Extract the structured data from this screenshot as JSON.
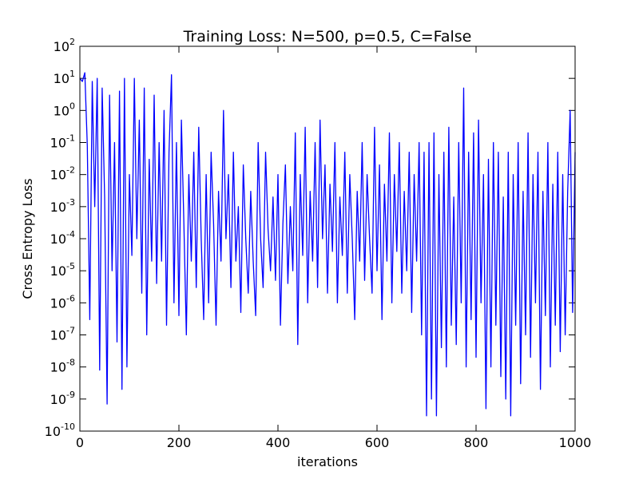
{
  "chart_data": {
    "type": "line",
    "title": "Training Loss: N=500, p=0.5, C=False",
    "x_label": "iterations",
    "y_label": "Cross Entropy Loss",
    "log_y": true,
    "xlim": [
      0,
      1000
    ],
    "xticks": [
      0,
      200,
      400,
      600,
      800,
      1000
    ],
    "ylim": [
      1e-10,
      100
    ],
    "yticks": [
      {
        "value": 1e-10,
        "label": "10^-10"
      },
      {
        "value": 1e-09,
        "label": "10^-9"
      },
      {
        "value": 1e-08,
        "label": "10^-8"
      },
      {
        "value": 1e-07,
        "label": "10^-7"
      },
      {
        "value": 1e-06,
        "label": "10^-6"
      },
      {
        "value": 1e-05,
        "label": "10^-5"
      },
      {
        "value": 0.0001,
        "label": "10^-4"
      },
      {
        "value": 0.001,
        "label": "10^-3"
      },
      {
        "value": 0.01,
        "label": "10^-2"
      },
      {
        "value": 0.1,
        "label": "10^-1"
      },
      {
        "value": 1,
        "label": "10^0"
      },
      {
        "value": 10,
        "label": "10^1"
      },
      {
        "value": 100,
        "label": "10^2"
      }
    ],
    "x": [
      0,
      5,
      10,
      15,
      20,
      25,
      30,
      35,
      40,
      45,
      50,
      55,
      60,
      65,
      70,
      75,
      80,
      85,
      90,
      95,
      100,
      105,
      110,
      115,
      120,
      125,
      130,
      135,
      140,
      145,
      150,
      155,
      160,
      165,
      170,
      175,
      180,
      185,
      190,
      195,
      200,
      205,
      210,
      215,
      220,
      225,
      230,
      235,
      240,
      245,
      250,
      255,
      260,
      265,
      270,
      275,
      280,
      285,
      290,
      295,
      300,
      305,
      310,
      315,
      320,
      325,
      330,
      335,
      340,
      345,
      350,
      355,
      360,
      365,
      370,
      375,
      380,
      385,
      390,
      395,
      400,
      405,
      410,
      415,
      420,
      425,
      430,
      435,
      440,
      445,
      450,
      455,
      460,
      465,
      470,
      475,
      480,
      485,
      490,
      495,
      500,
      505,
      510,
      515,
      520,
      525,
      530,
      535,
      540,
      545,
      550,
      555,
      560,
      565,
      570,
      575,
      580,
      585,
      590,
      595,
      600,
      605,
      610,
      615,
      620,
      625,
      630,
      635,
      640,
      645,
      650,
      655,
      660,
      665,
      670,
      675,
      680,
      685,
      690,
      695,
      700,
      705,
      710,
      715,
      720,
      725,
      730,
      735,
      740,
      745,
      750,
      755,
      760,
      765,
      770,
      775,
      780,
      785,
      790,
      795,
      800,
      805,
      810,
      815,
      820,
      825,
      830,
      835,
      840,
      845,
      850,
      855,
      860,
      865,
      870,
      875,
      880,
      885,
      890,
      895,
      900,
      905,
      910,
      915,
      920,
      925,
      930,
      935,
      940,
      945,
      950,
      955,
      960,
      965,
      970,
      975,
      980,
      985,
      990,
      995,
      1000
    ],
    "series": [
      {
        "name": "loss",
        "color": "#0000ff",
        "values": [
          10,
          8,
          15,
          0.08,
          3e-07,
          8,
          0.001,
          10,
          8e-09,
          5,
          0.002,
          7e-10,
          3,
          1e-05,
          0.1,
          6e-08,
          4,
          2e-09,
          10,
          1e-08,
          0.01,
          3e-05,
          10,
          0.0001,
          0.5,
          2e-06,
          5,
          1e-07,
          0.03,
          2e-05,
          3,
          4e-06,
          0.1,
          2e-05,
          1,
          2e-07,
          0.05,
          13,
          1e-06,
          0.1,
          4e-07,
          0.5,
          0.0003,
          1e-07,
          0.01,
          2e-05,
          0.05,
          3e-06,
          0.3,
          0.0001,
          3e-07,
          0.01,
          1e-06,
          0.05,
          0.0003,
          2e-07,
          0.003,
          2e-05,
          1,
          0.0001,
          0.01,
          3e-06,
          0.05,
          2e-05,
          0.001,
          5e-07,
          0.02,
          0.0001,
          2e-06,
          0.003,
          2e-05,
          4e-07,
          0.1,
          0.0001,
          3e-06,
          0.05,
          0.0002,
          1e-05,
          0.002,
          5e-06,
          0.01,
          2e-07,
          0.0003,
          0.02,
          4e-06,
          0.001,
          1e-05,
          0.2,
          5e-08,
          0.01,
          3e-05,
          0.3,
          1e-06,
          0.003,
          2e-05,
          0.1,
          3e-06,
          0.5,
          0.0001,
          0.02,
          2e-06,
          0.005,
          4e-05,
          0.1,
          1e-06,
          0.002,
          3e-05,
          0.05,
          2e-06,
          0.01,
          0.0001,
          3e-07,
          0.003,
          2e-05,
          0.1,
          5e-06,
          0.01,
          0.0001,
          2e-06,
          0.3,
          1e-05,
          0.02,
          3e-07,
          0.005,
          2e-05,
          0.2,
          1e-06,
          0.01,
          4e-05,
          0.1,
          2e-06,
          0.003,
          1e-05,
          0.05,
          5e-07,
          0.01,
          2e-05,
          0.1,
          1e-07,
          0.05,
          3e-10,
          0.1,
          1e-09,
          0.2,
          3e-10,
          0.01,
          4e-08,
          0.05,
          1e-08,
          0.3,
          2e-07,
          0.002,
          5e-08,
          0.1,
          1e-06,
          5,
          1e-08,
          0.05,
          3e-07,
          0.2,
          2e-08,
          0.5,
          1e-06,
          0.01,
          5e-10,
          0.03,
          1e-08,
          0.1,
          2e-07,
          0.05,
          5e-09,
          0.002,
          1e-09,
          0.05,
          3e-10,
          0.01,
          2e-07,
          0.1,
          3e-09,
          0.003,
          1e-07,
          0.2,
          2e-08,
          0.01,
          1e-06,
          0.05,
          2e-09,
          0.003,
          4e-07,
          0.1,
          1e-08,
          0.005,
          2e-07,
          0.05,
          3e-08,
          0.01,
          1e-07,
          0.003,
          1,
          5e-07,
          0.05
        ]
      }
    ]
  }
}
